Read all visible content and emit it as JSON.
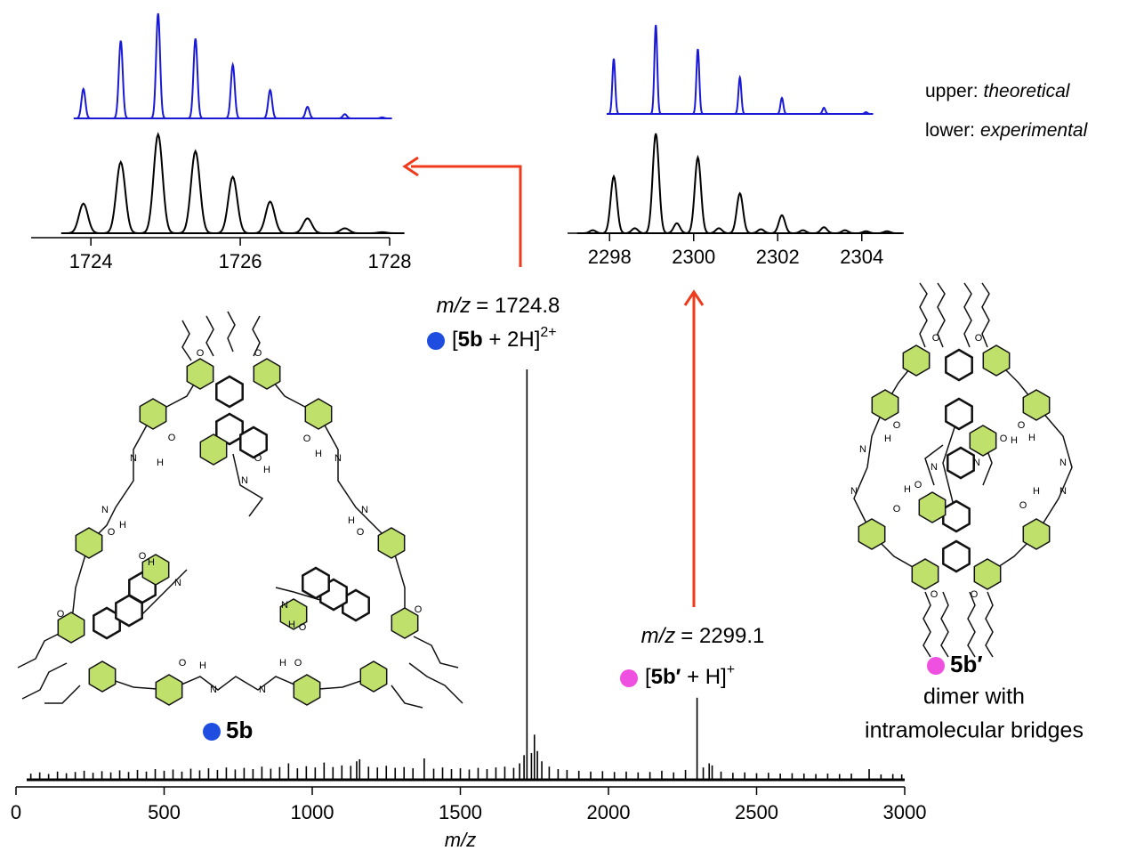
{
  "chart_data": [
    {
      "type": "spectrum",
      "xlabel": "m/z",
      "xlim": [
        0,
        3000
      ],
      "xticks": [
        0,
        500,
        1000,
        1500,
        2000,
        2500,
        3000
      ],
      "ylim": [
        0,
        100
      ],
      "series": [
        {
          "color": "#000000",
          "x": [
            50,
            80,
            110,
            140,
            170,
            200,
            230,
            260,
            290,
            320,
            350,
            380,
            410,
            440,
            470,
            500,
            530,
            560,
            590,
            620,
            650,
            680,
            710,
            740,
            770,
            800,
            830,
            860,
            890,
            920,
            950,
            980,
            1010,
            1040,
            1070,
            1100,
            1130,
            1150,
            1160,
            1190,
            1220,
            1250,
            1280,
            1310,
            1340,
            1378,
            1410,
            1440,
            1470,
            1500,
            1530,
            1560,
            1590,
            1620,
            1650,
            1680,
            1700,
            1715,
            1724.8,
            1740,
            1750,
            1760,
            1775,
            1800,
            1830,
            1860,
            1900,
            1940,
            1980,
            2020,
            2060,
            2100,
            2140,
            2180,
            2220,
            2260,
            2299.1,
            2320,
            2340,
            2350,
            2380,
            2420,
            2460,
            2500,
            2540,
            2580,
            2620,
            2660,
            2700,
            2740,
            2780,
            2820,
            2880,
            2920,
            2960,
            2990
          ],
          "values": [
            1.5,
            1.8,
            1.4,
            2.0,
            1.6,
            1.9,
            2.2,
            1.7,
            2.1,
            1.8,
            2.3,
            1.9,
            2.4,
            2.0,
            2.6,
            2.2,
            2.5,
            2.0,
            2.7,
            2.3,
            2.8,
            2.4,
            3.0,
            2.5,
            2.9,
            2.6,
            3.2,
            2.7,
            3.1,
            4.0,
            2.8,
            3.3,
            3.0,
            4.2,
            3.1,
            3.5,
            3.4,
            4.5,
            5.0,
            3.2,
            3.0,
            3.4,
            2.9,
            3.1,
            2.8,
            5.2,
            2.7,
            3.0,
            2.6,
            2.8,
            2.5,
            2.9,
            2.6,
            3.0,
            3.2,
            2.9,
            4.0,
            6.0,
            100,
            6.5,
            11,
            7,
            4.5,
            3.2,
            2.6,
            2.4,
            2.2,
            2.0,
            2.1,
            1.9,
            2.0,
            1.8,
            1.9,
            2.2,
            1.8,
            2.4,
            20,
            3.0,
            4.0,
            3.5,
            2.0,
            1.7,
            1.8,
            1.6,
            1.7,
            1.5,
            1.6,
            1.5,
            1.4,
            1.5,
            1.4,
            1.5,
            2.6,
            1.3,
            1.4,
            1.3
          ]
        }
      ]
    },
    {
      "type": "spectrum",
      "xlim": [
        1723.2,
        1728
      ],
      "xticks": [
        1724,
        1726,
        1728
      ],
      "ylim": [
        0,
        100
      ],
      "series": [
        {
          "name": "theoretical",
          "color": "#1a1ad6",
          "x": [
            1723.9,
            1724.4,
            1724.9,
            1725.4,
            1725.9,
            1726.4,
            1726.9,
            1727.4,
            1727.9
          ],
          "values": [
            28,
            74,
            100,
            76,
            51,
            27,
            11,
            4,
            1
          ]
        },
        {
          "name": "experimental",
          "color": "#000000",
          "x": [
            1723.9,
            1724.4,
            1724.9,
            1725.4,
            1725.9,
            1726.4,
            1726.9,
            1727.4,
            1727.9
          ],
          "values": [
            30,
            72,
            100,
            83,
            57,
            32,
            15,
            5,
            1
          ]
        }
      ]
    },
    {
      "type": "spectrum",
      "xlim": [
        2297,
        2305
      ],
      "xticks": [
        2298,
        2300,
        2302,
        2304
      ],
      "ylim": [
        0,
        100
      ],
      "series": [
        {
          "name": "theoretical",
          "color": "#1a1ad6",
          "x": [
            2298.1,
            2299.1,
            2300.1,
            2301.1,
            2302.1,
            2303.1,
            2304.1
          ],
          "values": [
            62,
            100,
            73,
            41,
            18,
            7,
            2
          ]
        },
        {
          "name": "experimental",
          "color": "#000000",
          "x": [
            2297.6,
            2298.1,
            2298.6,
            2299.1,
            2299.6,
            2300.1,
            2300.6,
            2301.1,
            2301.6,
            2302.1,
            2302.6,
            2303.1,
            2303.6,
            2304.1,
            2304.6
          ],
          "values": [
            3,
            57,
            5,
            100,
            10,
            76,
            5,
            40,
            4,
            18,
            3,
            6,
            3,
            2,
            2
          ]
        }
      ]
    }
  ],
  "legend": [
    "upper:",
    "lower:"
  ],
  "peak_labels": [
    {
      "mz_symbol": "m/z",
      "mz_value": "= 1724.8",
      "ion": [
        "[",
        "5b",
        " + 2H]",
        "2+"
      ],
      "color": "#1f4de0"
    },
    {
      "mz_symbol": "m/z",
      "mz_value": "= 2299.1",
      "ion": [
        "[",
        "5b′",
        " + H]",
        "+"
      ],
      "color": "#f050e0"
    }
  ],
  "compounds": [
    {
      "name": "5b",
      "color": "#1f4de0"
    },
    {
      "name": "5b′",
      "color": "#f050e0",
      "description": [
        "dimer with",
        "intramolecular bridges"
      ]
    }
  ],
  "atoms": {
    "oxygen": "O",
    "nitrogen": "N",
    "hydrogen": "H"
  }
}
